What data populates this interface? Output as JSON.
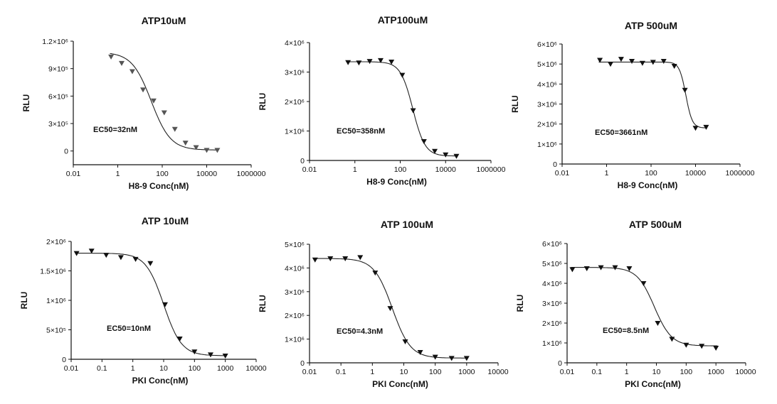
{
  "figure": {
    "panels": [
      {
        "title": "ATP10uM",
        "xlabel": "H8-9 Conc(nM)",
        "ylabel": "RLU",
        "annotation": "EC50=32nM",
        "marker_color": "#555555",
        "x_ticks": [
          "0.01",
          "1",
          "100",
          "10000",
          "1000000"
        ],
        "y_ticks": [
          "0",
          "3×10⁵",
          "6×10⁵",
          "9×10⁵",
          "1.2×10⁶"
        ]
      },
      {
        "title": "ATP100uM",
        "xlabel": "H8-9 Conc(nM)",
        "ylabel": "RLU",
        "annotation": "EC50=358nM",
        "marker_color": "#111111",
        "x_ticks": [
          "0.01",
          "1",
          "100",
          "10000",
          "1000000"
        ],
        "y_ticks": [
          "0",
          "1×10⁶",
          "2×10⁶",
          "3×10⁶",
          "4×10⁶"
        ]
      },
      {
        "title": "ATP 500uM",
        "xlabel": "H8-9 Conc(nM)",
        "ylabel": "RLU",
        "annotation": "EC50=3661nM",
        "marker_color": "#111111",
        "x_ticks": [
          "0.01",
          "1",
          "100",
          "10000",
          "1000000"
        ],
        "y_ticks": [
          "0",
          "1×10⁶",
          "2×10⁶",
          "3×10⁶",
          "4×10⁶",
          "5×10⁶",
          "6×10⁶"
        ]
      },
      {
        "title": "ATP 10uM",
        "xlabel": "PKI  Conc(nM)",
        "ylabel": "RLU",
        "annotation": "EC50=10nM",
        "marker_color": "#111111",
        "x_ticks": [
          "0.01",
          "0.1",
          "1",
          "10",
          "100",
          "1000",
          "10000"
        ],
        "y_ticks": [
          "0",
          "5×10⁵",
          "1×10⁶",
          "1.5×10⁶",
          "2×10⁶"
        ]
      },
      {
        "title": "ATP 100uM",
        "xlabel": "PKI  Conc(nM)",
        "ylabel": "RLU",
        "annotation": "EC50=4.3nM",
        "marker_color": "#111111",
        "x_ticks": [
          "0.01",
          "0.1",
          "1",
          "10",
          "100",
          "1000",
          "10000"
        ],
        "y_ticks": [
          "0",
          "1×10⁶",
          "2×10⁶",
          "3×10⁶",
          "4×10⁶",
          "5×10⁶"
        ]
      },
      {
        "title": "ATP 500uM",
        "xlabel": "PKI  Conc(nM)",
        "ylabel": "RLU",
        "annotation": "EC50=8.5nM",
        "marker_color": "#111111",
        "x_ticks": [
          "0.01",
          "0.1",
          "1",
          "10",
          "100",
          "1000",
          "10000"
        ],
        "y_ticks": [
          "0",
          "1×10⁶",
          "2×10⁶",
          "3×10⁶",
          "4×10⁶",
          "5×10⁶",
          "6×10⁶"
        ]
      }
    ]
  },
  "chart_data": [
    {
      "type": "scatter",
      "title": "ATP10uM",
      "xlabel": "H8-9 Conc(nM)",
      "ylabel": "RLU",
      "x_scale": "log",
      "xlim": [
        0.01,
        1000000
      ],
      "ylim": [
        -150000,
        1200000
      ],
      "annotation": "EC50=32nM",
      "fit": {
        "top": 1080000,
        "bottom": 10000,
        "ec50": 32,
        "hill": 1.0
      },
      "x": [
        0.5,
        1.5,
        4.5,
        13.7,
        41,
        123,
        370,
        1111,
        3333,
        10000,
        30000
      ],
      "y": [
        1030000,
        960000,
        870000,
        670000,
        550000,
        420000,
        240000,
        90000,
        40000,
        10000,
        10000
      ]
    },
    {
      "type": "scatter",
      "title": "ATP100uM",
      "xlabel": "H8-9 Conc(nM)",
      "ylabel": "RLU",
      "x_scale": "log",
      "xlim": [
        0.01,
        1000000
      ],
      "ylim": [
        0,
        4000000
      ],
      "annotation": "EC50=358nM",
      "fit": {
        "top": 3350000,
        "bottom": 150000,
        "ec50": 358,
        "hill": 1.6
      },
      "x": [
        0.5,
        1.5,
        4.5,
        13.7,
        41,
        123,
        370,
        1111,
        3333,
        10000,
        30000
      ],
      "y": [
        3330000,
        3320000,
        3370000,
        3400000,
        3350000,
        2900000,
        1700000,
        650000,
        320000,
        200000,
        150000
      ]
    },
    {
      "type": "scatter",
      "title": "ATP 500uM",
      "xlabel": "H8-9 Conc(nM)",
      "ylabel": "RLU",
      "x_scale": "log",
      "xlim": [
        0.01,
        1000000
      ],
      "ylim": [
        0,
        6000000
      ],
      "annotation": "EC50=3661nM",
      "fit": {
        "top": 5100000,
        "bottom": 1800000,
        "ec50": 3661,
        "hill": 3.0
      },
      "x": [
        0.5,
        1.5,
        4.5,
        13.7,
        41,
        123,
        370,
        1111,
        3333,
        10000,
        30000
      ],
      "y": [
        5200000,
        5000000,
        5250000,
        5150000,
        5050000,
        5100000,
        5150000,
        4900000,
        3700000,
        1800000,
        1850000
      ]
    },
    {
      "type": "scatter",
      "title": "ATP 10uM",
      "xlabel": "PKI  Conc(nM)",
      "ylabel": "RLU",
      "x_scale": "log",
      "xlim": [
        0.01,
        10000
      ],
      "ylim": [
        0,
        2000000
      ],
      "annotation": "EC50=10nM",
      "fit": {
        "top": 1800000,
        "bottom": 60000,
        "ec50": 10,
        "hill": 1.5
      },
      "x": [
        0.015,
        0.046,
        0.137,
        0.41,
        1.23,
        3.7,
        11.1,
        33.3,
        100,
        333,
        1000
      ],
      "y": [
        1800000,
        1840000,
        1770000,
        1730000,
        1700000,
        1630000,
        930000,
        350000,
        130000,
        80000,
        60000
      ]
    },
    {
      "type": "scatter",
      "title": "ATP 100uM",
      "xlabel": "PKI  Conc(nM)",
      "ylabel": "RLU",
      "x_scale": "log",
      "xlim": [
        0.01,
        10000
      ],
      "ylim": [
        0,
        5000000
      ],
      "annotation": "EC50=4.3nM",
      "fit": {
        "top": 4400000,
        "bottom": 200000,
        "ec50": 4.3,
        "hill": 1.5
      },
      "x": [
        0.015,
        0.046,
        0.137,
        0.41,
        1.23,
        3.7,
        11.1,
        33.3,
        100,
        333,
        1000
      ],
      "y": [
        4350000,
        4400000,
        4400000,
        4450000,
        3800000,
        2300000,
        900000,
        450000,
        250000,
        200000,
        200000
      ]
    },
    {
      "type": "scatter",
      "title": "ATP 500uM",
      "xlabel": "PKI  Conc(nM)",
      "ylabel": "RLU",
      "x_scale": "log",
      "xlim": [
        0.01,
        10000
      ],
      "ylim": [
        0,
        6000000
      ],
      "annotation": "EC50=8.5nM",
      "fit": {
        "top": 4800000,
        "bottom": 850000,
        "ec50": 8.5,
        "hill": 1.5
      },
      "x": [
        0.015,
        0.046,
        0.137,
        0.41,
        1.23,
        3.7,
        11.1,
        33.3,
        100,
        333,
        1000
      ],
      "y": [
        4700000,
        4750000,
        4800000,
        4800000,
        4750000,
        4000000,
        2000000,
        1200000,
        900000,
        850000,
        750000
      ]
    }
  ]
}
